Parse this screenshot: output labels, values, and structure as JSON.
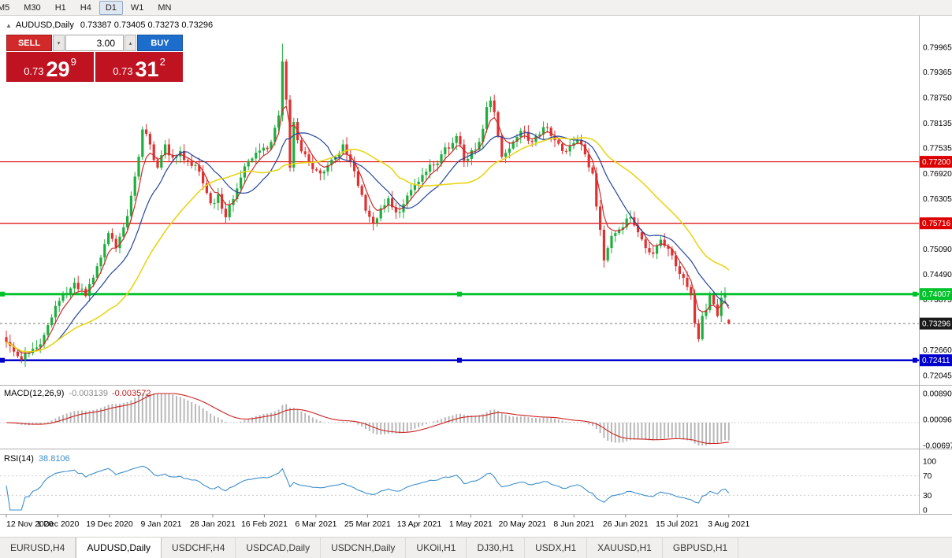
{
  "colors": {
    "up": "#1fae3d",
    "down": "#e03131",
    "level_red": "#dd0000",
    "level_green": "#00c22a",
    "level_blue": "#0000cc",
    "bid_tag": "#1a1a1a",
    "sell_button": "#d22a2a",
    "buy_button": "#1d6ecc",
    "price_panel": "#bf1322"
  },
  "toolbar": {
    "timeframes": [
      {
        "label": "M5",
        "active": false
      },
      {
        "label": "M30",
        "active": false
      },
      {
        "label": "H1",
        "active": false
      },
      {
        "label": "H4",
        "active": false
      },
      {
        "label": "D1",
        "active": true
      },
      {
        "label": "W1",
        "active": false
      },
      {
        "label": "MN",
        "active": false
      }
    ]
  },
  "header": {
    "collapse_icon": "▲",
    "symbol": "AUDUSD,Daily",
    "ohlc": "0.73387 0.73405 0.73273 0.73296"
  },
  "trade_panel": {
    "sell_label": "SELL",
    "buy_label": "BUY",
    "volume": "3.00",
    "spin_down_icon": "▾",
    "spin_up_icon": "▴",
    "sell_price_prefix": "0.73",
    "sell_price_big": "29",
    "sell_price_sup": "9",
    "buy_price_prefix": "0.73",
    "buy_price_big": "31",
    "buy_price_sup": "2"
  },
  "tabs": [
    {
      "label": "EURUSD,H4",
      "active": false
    },
    {
      "label": "AUDUSD,Daily",
      "active": true
    },
    {
      "label": "USDCHF,H4",
      "active": false
    },
    {
      "label": "USDCAD,Daily",
      "active": false
    },
    {
      "label": "USDCNH,Daily",
      "active": false
    },
    {
      "label": "UKOil,H1",
      "active": false
    },
    {
      "label": "DJ30,H1",
      "active": false
    },
    {
      "label": "USDX,H1",
      "active": false
    },
    {
      "label": "XAUUSD,H1",
      "active": false
    },
    {
      "label": "GBPUSD,H1",
      "active": false
    }
  ],
  "chart_data": {
    "type": "candlestick",
    "symbol": "AUDUSD",
    "timeframe": "Daily",
    "grid": false,
    "last_ohlc": {
      "open": 0.73387,
      "high": 0.73405,
      "low": 0.73273,
      "close": 0.73296
    },
    "price_axis_labels": [
      {
        "text": "0.79965",
        "value": 0.79965
      },
      {
        "text": "0.79365",
        "value": 0.79365
      },
      {
        "text": "0.78750",
        "value": 0.7875
      },
      {
        "text": "0.78135",
        "value": 0.78135
      },
      {
        "text": "0.77535",
        "value": 0.77535
      },
      {
        "text": "0.76920",
        "value": 0.7692
      },
      {
        "text": "0.76305",
        "value": 0.76305
      },
      {
        "text": "0.75690",
        "value": 0.7569
      },
      {
        "text": "0.75090",
        "value": 0.7509
      },
      {
        "text": "0.74490",
        "value": 0.7449
      },
      {
        "text": "0.73875",
        "value": 0.73875
      },
      {
        "text": "0.72660",
        "value": 0.7266
      },
      {
        "text": "0.72045",
        "value": 0.72045
      }
    ],
    "x_axis_dates": [
      "12 Nov 2020",
      "1 Dec 2020",
      "19 Dec 2020",
      "9 Jan 2021",
      "28 Jan 2021",
      "16 Feb 2021",
      "6 Mar 2021",
      "25 Mar 2021",
      "13 Apr 2021",
      "1 May 2021",
      "20 May 2021",
      "8 Jun 2021",
      "26 Jun 2021",
      "15 Jul 2021",
      "3 Aug 2021"
    ],
    "candle_count": 192,
    "spike": {
      "index": 73,
      "high": 0.8005
    },
    "close_anchors": [
      [
        0,
        0.7285
      ],
      [
        2,
        0.7262
      ],
      [
        4,
        0.7242
      ],
      [
        6,
        0.7258
      ],
      [
        8,
        0.7272
      ],
      [
        10,
        0.7302
      ],
      [
        13,
        0.7372
      ],
      [
        16,
        0.7402
      ],
      [
        18,
        0.7428
      ],
      [
        21,
        0.7396
      ],
      [
        24,
        0.7468
      ],
      [
        27,
        0.7548
      ],
      [
        29,
        0.7512
      ],
      [
        31,
        0.7562
      ],
      [
        33,
        0.7638
      ],
      [
        35,
        0.7732
      ],
      [
        36,
        0.7798
      ],
      [
        38,
        0.7762
      ],
      [
        40,
        0.7706
      ],
      [
        42,
        0.7762
      ],
      [
        44,
        0.773
      ],
      [
        46,
        0.7746
      ],
      [
        48,
        0.7722
      ],
      [
        50,
        0.7712
      ],
      [
        52,
        0.7668
      ],
      [
        54,
        0.762
      ],
      [
        56,
        0.7642
      ],
      [
        58,
        0.7586
      ],
      [
        60,
        0.763
      ],
      [
        62,
        0.7682
      ],
      [
        64,
        0.7722
      ],
      [
        66,
        0.7742
      ],
      [
        68,
        0.7754
      ],
      [
        70,
        0.7768
      ],
      [
        71,
        0.7802
      ],
      [
        72,
        0.7832
      ],
      [
        73,
        0.7962
      ],
      [
        74,
        0.787
      ],
      [
        75,
        0.7706
      ],
      [
        76,
        0.7816
      ],
      [
        77,
        0.7772
      ],
      [
        79,
        0.7738
      ],
      [
        81,
        0.7702
      ],
      [
        83,
        0.7692
      ],
      [
        85,
        0.7712
      ],
      [
        87,
        0.7732
      ],
      [
        89,
        0.7762
      ],
      [
        91,
        0.7722
      ],
      [
        93,
        0.7662
      ],
      [
        95,
        0.7602
      ],
      [
        97,
        0.7572
      ],
      [
        99,
        0.7608
      ],
      [
        101,
        0.7632
      ],
      [
        103,
        0.7598
      ],
      [
        105,
        0.7618
      ],
      [
        107,
        0.7652
      ],
      [
        109,
        0.7672
      ],
      [
        111,
        0.7696
      ],
      [
        113,
        0.7712
      ],
      [
        115,
        0.7738
      ],
      [
        117,
        0.7752
      ],
      [
        119,
        0.7782
      ],
      [
        121,
        0.7722
      ],
      [
        123,
        0.7748
      ],
      [
        125,
        0.7768
      ],
      [
        127,
        0.7852
      ],
      [
        128,
        0.7868
      ],
      [
        129,
        0.784
      ],
      [
        131,
        0.7732
      ],
      [
        133,
        0.7752
      ],
      [
        135,
        0.778
      ],
      [
        137,
        0.7792
      ],
      [
        139,
        0.7768
      ],
      [
        141,
        0.7786
      ],
      [
        143,
        0.7802
      ],
      [
        145,
        0.7772
      ],
      [
        147,
        0.7746
      ],
      [
        149,
        0.7758
      ],
      [
        151,
        0.7772
      ],
      [
        153,
        0.7738
      ],
      [
        155,
        0.7692
      ],
      [
        156,
        0.7612
      ],
      [
        157,
        0.7556
      ],
      [
        158,
        0.7482
      ],
      [
        159,
        0.7512
      ],
      [
        161,
        0.7548
      ],
      [
        163,
        0.7562
      ],
      [
        165,
        0.7586
      ],
      [
        167,
        0.755
      ],
      [
        169,
        0.7512
      ],
      [
        171,
        0.7498
      ],
      [
        173,
        0.7532
      ],
      [
        175,
        0.751
      ],
      [
        177,
        0.7468
      ],
      [
        179,
        0.744
      ],
      [
        181,
        0.7398
      ],
      [
        182,
        0.733
      ],
      [
        183,
        0.7292
      ],
      [
        184,
        0.7348
      ],
      [
        185,
        0.7362
      ],
      [
        186,
        0.7398
      ],
      [
        187,
        0.7376
      ],
      [
        188,
        0.7348
      ],
      [
        189,
        0.7392
      ],
      [
        190,
        0.7404
      ],
      [
        191,
        0.73296
      ]
    ],
    "moving_averages": [
      {
        "name": "fast-red-ma",
        "type": "ema",
        "period": 5,
        "color": "#cc2b2b"
      },
      {
        "name": "mid-blue-ma",
        "type": "sma",
        "period": 13,
        "color": "#24449c"
      },
      {
        "name": "slow-yellow-ma",
        "type": "sma",
        "period": 30,
        "color": "#e8d518"
      }
    ],
    "levels": [
      {
        "value": 0.772,
        "label": "0.77200",
        "color": "#dd0000",
        "width": 1.2,
        "handles": false,
        "style": "solid",
        "role": "resistance"
      },
      {
        "value": 0.75716,
        "label": "0.75716",
        "color": "#dd0000",
        "width": 1.2,
        "handles": false,
        "style": "solid",
        "role": "resistance"
      },
      {
        "value": 0.74007,
        "label": "0.74007",
        "color": "#00c22a",
        "width": 3,
        "handles": true,
        "style": "solid",
        "role": "support"
      },
      {
        "value": 0.72411,
        "label": "0.72411",
        "color": "#0000cc",
        "width": 2.5,
        "handles": true,
        "style": "solid",
        "role": "support"
      },
      {
        "value": 0.73296,
        "label": "0.73296",
        "color": "#777777",
        "tag_bg": "#1a1a1a",
        "width": 1,
        "handles": false,
        "style": "dashed",
        "role": "bid"
      }
    ],
    "macd": {
      "title": "MACD(12,26,9)",
      "value_main": "-0.003139",
      "value_signal": "-0.003572",
      "fast": 12,
      "slow": 26,
      "signal": 9,
      "hist_color": "#b8b8b8",
      "signal_color": "#cc2222",
      "axis_labels": [
        {
          "text": "0.008903",
          "value": 0.008903
        },
        {
          "text": "0.000963",
          "value": 0.000963
        },
        {
          "text": "-0.006977",
          "value": -0.006977
        }
      ]
    },
    "rsi": {
      "title": "RSI(14)",
      "value": "38.8106",
      "period": 14,
      "color": "#3d8fcc",
      "level_lines": [
        70,
        30
      ],
      "axis_labels": [
        {
          "text": "100",
          "value": 100
        },
        {
          "text": "70",
          "value": 70
        },
        {
          "text": "30",
          "value": 30
        },
        {
          "text": "0",
          "value": 0
        }
      ]
    }
  }
}
